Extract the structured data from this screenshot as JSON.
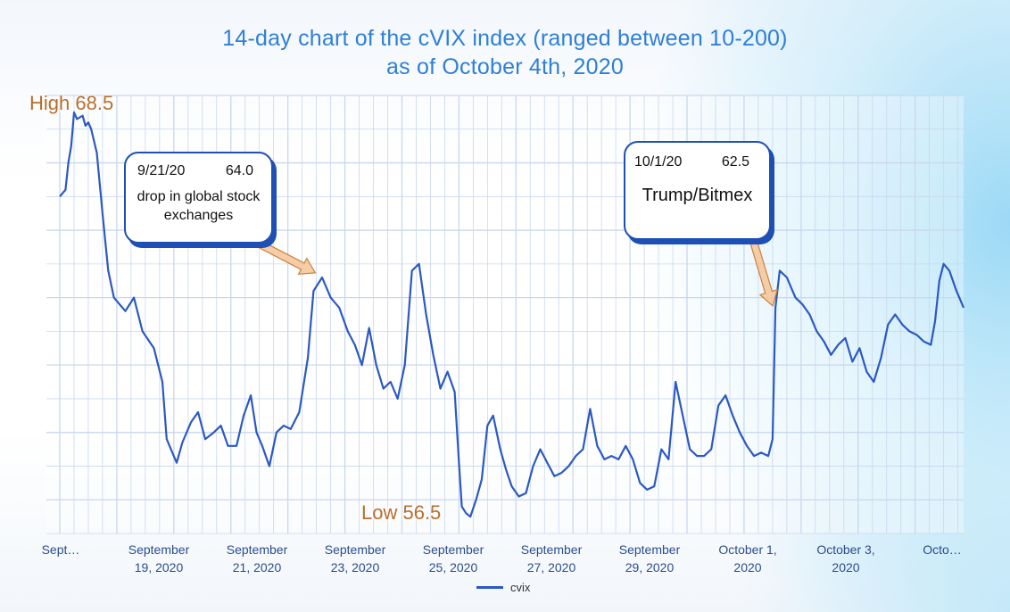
{
  "title_line1": "14-day chart of the cVIX index (ranged between 10-200)",
  "title_line2": "as of October 4th, 2020",
  "extremes": {
    "high": "High 68.5",
    "low": "Low 56.5"
  },
  "callouts": [
    {
      "date": "9/21/20",
      "value": "64.0",
      "note": "drop in global stock exchanges"
    },
    {
      "date": "10/1/20",
      "value": "62.5",
      "note": "Trump/Bitmex"
    }
  ],
  "colors": {
    "line": "#2b59c3",
    "title": "#2e7fd8",
    "extreme": "#b86e2c",
    "grid": "#c9d7ee",
    "callout_border": "#1d4fb5",
    "arrow": "#c9823f"
  },
  "chart_data": {
    "type": "line",
    "title": "14-day chart of the cVIX index (ranged between 10-200)\nas of October 4th, 2020",
    "xlabel": "",
    "ylabel": "",
    "x_ticks": [
      "Sept…",
      "September\n19, 2020",
      "September\n21, 2020",
      "September\n23, 2020",
      "September\n25, 2020",
      "September\n27, 2020",
      "September\n29, 2020",
      "October 1,\n2020",
      "October 3,\n2020",
      "Octo…"
    ],
    "grid": true,
    "legend": "bottom-center",
    "ylim": [
      56,
      69
    ],
    "series": [
      {
        "name": "cvix",
        "values": [
          [
            0.0,
            66.0
          ],
          [
            0.1,
            66.1
          ],
          [
            0.2,
            66.2
          ],
          [
            0.3,
            67.0
          ],
          [
            0.4,
            67.5
          ],
          [
            0.5,
            68.5
          ],
          [
            0.6,
            68.3
          ],
          [
            0.8,
            68.4
          ],
          [
            0.9,
            68.1
          ],
          [
            1.0,
            68.2
          ],
          [
            1.1,
            68.0
          ],
          [
            1.3,
            67.3
          ],
          [
            1.5,
            65.5
          ],
          [
            1.7,
            63.8
          ],
          [
            1.9,
            63.0
          ],
          [
            2.1,
            62.8
          ],
          [
            2.3,
            62.6
          ],
          [
            2.6,
            63.0
          ],
          [
            2.9,
            62.0
          ],
          [
            3.3,
            61.5
          ],
          [
            3.6,
            60.5
          ],
          [
            3.75,
            58.8
          ],
          [
            3.9,
            58.5
          ],
          [
            4.1,
            58.1
          ],
          [
            4.3,
            58.7
          ],
          [
            4.6,
            59.3
          ],
          [
            4.85,
            59.6
          ],
          [
            5.1,
            58.8
          ],
          [
            5.4,
            59.0
          ],
          [
            5.65,
            59.2
          ],
          [
            5.9,
            58.6
          ],
          [
            6.2,
            58.6
          ],
          [
            6.45,
            59.5
          ],
          [
            6.7,
            60.1
          ],
          [
            6.9,
            59.0
          ],
          [
            7.1,
            58.6
          ],
          [
            7.35,
            58.0
          ],
          [
            7.6,
            59.0
          ],
          [
            7.85,
            59.2
          ],
          [
            8.1,
            59.1
          ],
          [
            8.4,
            59.6
          ],
          [
            8.7,
            61.2
          ],
          [
            8.9,
            63.2
          ],
          [
            9.2,
            63.6
          ],
          [
            9.5,
            63.0
          ],
          [
            9.8,
            62.7
          ],
          [
            10.1,
            62.0
          ],
          [
            10.35,
            61.6
          ],
          [
            10.6,
            61.0
          ],
          [
            10.85,
            62.1
          ],
          [
            11.1,
            61.0
          ],
          [
            11.35,
            60.3
          ],
          [
            11.6,
            60.5
          ],
          [
            11.85,
            60.0
          ],
          [
            12.1,
            61.0
          ],
          [
            12.35,
            63.8
          ],
          [
            12.6,
            64.0
          ],
          [
            12.85,
            62.5
          ],
          [
            13.1,
            61.3
          ],
          [
            13.35,
            60.3
          ],
          [
            13.6,
            60.8
          ],
          [
            13.85,
            60.2
          ],
          [
            14.0,
            58.1
          ],
          [
            14.1,
            56.8
          ],
          [
            14.25,
            56.6
          ],
          [
            14.4,
            56.5
          ],
          [
            14.6,
            57.0
          ],
          [
            14.8,
            57.6
          ],
          [
            15.0,
            59.2
          ],
          [
            15.2,
            59.5
          ],
          [
            15.45,
            58.5
          ],
          [
            15.65,
            57.9
          ],
          [
            15.85,
            57.4
          ],
          [
            16.1,
            57.1
          ],
          [
            16.35,
            57.2
          ],
          [
            16.6,
            58.0
          ],
          [
            16.85,
            58.5
          ],
          [
            17.1,
            58.1
          ],
          [
            17.35,
            57.7
          ],
          [
            17.6,
            57.8
          ],
          [
            17.85,
            58.0
          ],
          [
            18.1,
            58.3
          ],
          [
            18.35,
            58.5
          ],
          [
            18.6,
            59.7
          ],
          [
            18.85,
            58.6
          ],
          [
            19.1,
            58.2
          ],
          [
            19.35,
            58.3
          ],
          [
            19.6,
            58.2
          ],
          [
            19.85,
            58.6
          ],
          [
            20.1,
            58.2
          ],
          [
            20.35,
            57.5
          ],
          [
            20.6,
            57.3
          ],
          [
            20.85,
            57.4
          ],
          [
            21.1,
            58.5
          ],
          [
            21.35,
            58.2
          ],
          [
            21.6,
            60.5
          ],
          [
            21.85,
            59.5
          ],
          [
            22.1,
            58.5
          ],
          [
            22.35,
            58.3
          ],
          [
            22.6,
            58.3
          ],
          [
            22.85,
            58.5
          ],
          [
            23.1,
            59.8
          ],
          [
            23.35,
            60.1
          ],
          [
            23.6,
            59.5
          ],
          [
            23.85,
            59.0
          ],
          [
            24.1,
            58.6
          ],
          [
            24.35,
            58.3
          ],
          [
            24.6,
            58.4
          ],
          [
            24.85,
            58.3
          ],
          [
            25.0,
            58.8
          ],
          [
            25.1,
            62.7
          ],
          [
            25.25,
            63.8
          ],
          [
            25.5,
            63.6
          ],
          [
            25.8,
            63.0
          ],
          [
            26.05,
            62.8
          ],
          [
            26.3,
            62.5
          ],
          [
            26.55,
            62.0
          ],
          [
            26.8,
            61.7
          ],
          [
            27.05,
            61.3
          ],
          [
            27.3,
            61.6
          ],
          [
            27.55,
            61.8
          ],
          [
            27.8,
            61.1
          ],
          [
            28.05,
            61.5
          ],
          [
            28.3,
            60.8
          ],
          [
            28.55,
            60.5
          ],
          [
            28.8,
            61.2
          ],
          [
            29.05,
            62.2
          ],
          [
            29.3,
            62.5
          ],
          [
            29.55,
            62.2
          ],
          [
            29.8,
            62.0
          ],
          [
            30.05,
            61.9
          ],
          [
            30.3,
            61.7
          ],
          [
            30.55,
            61.6
          ],
          [
            30.7,
            62.3
          ],
          [
            30.85,
            63.5
          ],
          [
            31.0,
            64.0
          ],
          [
            31.2,
            63.8
          ],
          [
            31.45,
            63.2
          ],
          [
            31.7,
            62.7
          ]
        ]
      }
    ]
  }
}
